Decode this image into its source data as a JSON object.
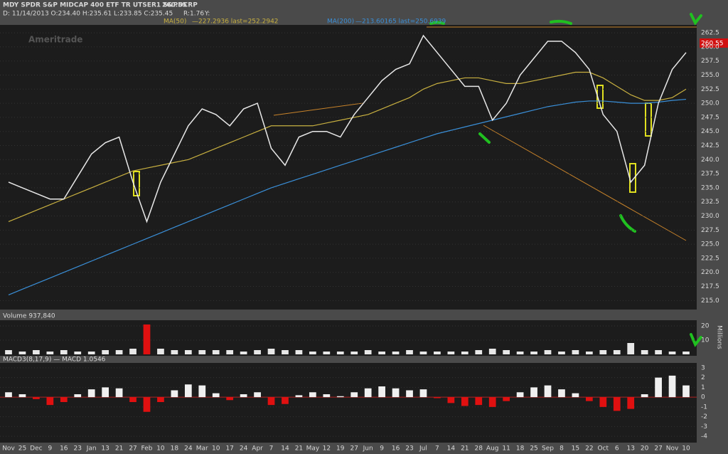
{
  "header": {
    "title": "MDY SPDR S&P MIDCAP 400 ETF TR UTSER1 S&PDCRP",
    "last": "260.55",
    "info": "D: 11/14/2013 O:234.40 H:235.61 L:233.85 C:235.45",
    "range": "R:1.76",
    "y": "Y:",
    "watermark": "Ameritrade"
  },
  "chart_data": [
    {
      "type": "line",
      "color": "#e8e8e8",
      "categories": [
        "Nov",
        "25",
        "Dec",
        "9",
        "16",
        "23",
        "Jan",
        "13",
        "21",
        "27",
        "Feb",
        "10",
        "18",
        "24",
        "Mar",
        "10",
        "17",
        "24",
        "Apr",
        "7",
        "14",
        "21",
        "May",
        "12",
        "19",
        "27",
        "Jun",
        "9",
        "16",
        "23",
        "Jul",
        "7",
        "14",
        "21",
        "28",
        "Aug",
        "11",
        "18",
        "25",
        "Sep",
        "8",
        "15",
        "22",
        "Oct",
        "6",
        "13",
        "20",
        "27",
        "Nov",
        "10"
      ],
      "values": [
        236,
        235,
        234,
        233,
        233,
        237,
        241,
        243,
        244,
        236,
        229,
        236,
        241,
        246,
        249,
        248,
        246,
        249,
        250,
        242,
        239,
        244,
        245,
        245,
        244,
        248,
        251,
        254,
        256,
        257,
        262,
        259,
        256,
        253,
        253,
        247,
        250,
        255,
        258,
        261,
        261,
        259,
        256,
        248,
        245,
        236,
        239,
        250,
        256,
        259
      ],
      "series": [
        {
          "name": "MA(50)",
          "legend_text": "—227.2936 last=252.2942",
          "color": "#c8b040",
          "values": [
            229,
            230,
            231,
            232,
            233,
            234,
            235,
            236,
            237,
            238,
            238.5,
            239,
            239.5,
            240,
            241,
            242,
            243,
            244,
            245,
            246,
            246,
            246,
            246,
            246.5,
            247,
            247.5,
            248,
            249,
            250,
            251,
            252.5,
            253.5,
            254,
            254.5,
            254.5,
            254,
            253.5,
            253.5,
            254,
            254.5,
            255,
            255.5,
            255.5,
            254.5,
            253,
            251.5,
            250.5,
            250.5,
            251,
            252.5
          ]
        },
        {
          "name": "MA(200)",
          "legend_text": "—213.60165 last=250.6939",
          "color": "#3a8fd8",
          "values": [
            216,
            217,
            218,
            219,
            220,
            221,
            222,
            223,
            224,
            225,
            226,
            227,
            228,
            229,
            230,
            231,
            232,
            233,
            234,
            235,
            235.8,
            236.6,
            237.4,
            238.2,
            239,
            239.8,
            240.6,
            241.4,
            242.2,
            243,
            243.8,
            244.6,
            245.2,
            245.8,
            246.4,
            247,
            247.6,
            248.2,
            248.8,
            249.4,
            249.8,
            250.2,
            250.4,
            250.4,
            250.2,
            250,
            250,
            250.2,
            250.5,
            250.7
          ]
        }
      ],
      "ylim": [
        213.4,
        263.9
      ],
      "yticks": [
        {
          "value": 215,
          "label": "215.0"
        },
        {
          "value": 217.5,
          "label": "217.5"
        },
        {
          "value": 220,
          "label": "220.0"
        },
        {
          "value": 222.5,
          "label": "222.5"
        },
        {
          "value": 225,
          "label": "225.0"
        },
        {
          "value": 227.5,
          "label": "227.5"
        },
        {
          "value": 230,
          "label": "230.0"
        },
        {
          "value": 232.5,
          "label": "232.5"
        },
        {
          "value": 235,
          "label": "235.0"
        },
        {
          "value": 237.5,
          "label": "237.5"
        },
        {
          "value": 240,
          "label": "240.0"
        },
        {
          "value": 242.5,
          "label": "242.5"
        },
        {
          "value": 245,
          "label": "245.0"
        },
        {
          "value": 247.5,
          "label": "247.5"
        },
        {
          "value": 250,
          "label": "250.0"
        },
        {
          "value": 252.5,
          "label": "252.5"
        },
        {
          "value": 255,
          "label": "255.0"
        },
        {
          "value": 257.5,
          "label": "257.5"
        },
        {
          "value": 260,
          "label": "260.0"
        },
        {
          "value": 262.5,
          "label": "262.5"
        }
      ],
      "grid": true
    },
    {
      "type": "bar",
      "title": "Volume 937,840",
      "ylabel": "Millions",
      "color": "#e8e8e8",
      "highlight_color": "#e01010",
      "values": [
        3,
        2,
        3,
        2,
        3,
        2,
        2,
        3,
        3,
        4,
        21,
        4,
        3,
        3,
        3,
        3,
        3,
        2,
        3,
        4,
        3,
        3,
        2,
        2,
        2,
        2,
        3,
        2,
        2,
        3,
        2,
        2,
        2,
        2,
        3,
        4,
        3,
        2,
        2,
        3,
        2,
        3,
        2,
        3,
        3,
        8,
        3,
        3,
        2,
        2
      ],
      "ylim": [
        0,
        24
      ],
      "yticks": [
        10,
        20
      ],
      "grid": true
    },
    {
      "type": "bar",
      "title": "MACD3(8,17,9) — MACD 1.0546",
      "pos_color": "#f0f0f0",
      "neg_color": "#e01010",
      "values": [
        0.5,
        0.3,
        -0.2,
        -0.8,
        -0.5,
        0.3,
        0.8,
        1,
        0.9,
        -0.5,
        -1.5,
        -0.5,
        0.7,
        1.3,
        1.2,
        0.4,
        -0.3,
        0.3,
        0.5,
        -0.8,
        -0.7,
        0.2,
        0.5,
        0.3,
        0.1,
        0.5,
        0.9,
        1.1,
        0.9,
        0.7,
        0.8,
        -0.1,
        -0.6,
        -0.9,
        -0.8,
        -1,
        -0.4,
        0.5,
        1,
        1.2,
        0.8,
        0.4,
        -0.4,
        -1,
        -1.4,
        -1.2,
        0.3,
        2,
        2.2,
        1.2
      ],
      "ylim": [
        -4.5,
        3.5
      ],
      "yticks": [
        -4,
        -3,
        -2,
        -1,
        0,
        1,
        2,
        3
      ],
      "grid": true
    }
  ]
}
